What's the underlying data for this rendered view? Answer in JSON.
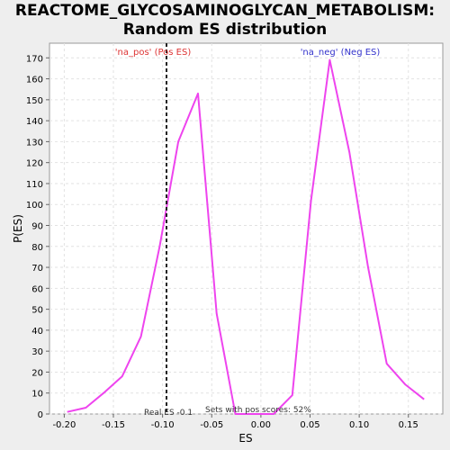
{
  "chart_data": {
    "type": "line",
    "title": "REACTOME_GLYCOSAMINOGLYCAN_METABOLISM:",
    "subtitle": "Random ES distribution",
    "xlabel": "ES",
    "ylabel": "P(ES)",
    "xlim": [
      -0.215,
      0.185
    ],
    "ylim": [
      0,
      177
    ],
    "grid": true,
    "x_ticks": [
      -0.2,
      -0.15,
      -0.1,
      -0.05,
      0.0,
      0.05,
      0.1,
      0.15
    ],
    "x_tick_labels": [
      "-0.20",
      "-0.15",
      "-0.10",
      "-0.05",
      "0.00",
      "0.05",
      "0.10",
      "0.15"
    ],
    "y_ticks": [
      0,
      10,
      20,
      30,
      40,
      50,
      60,
      70,
      80,
      90,
      100,
      110,
      120,
      130,
      140,
      150,
      160,
      170
    ],
    "series": [
      {
        "color": "#ee44ee",
        "x": [
          -0.197,
          -0.178,
          -0.16,
          -0.141,
          -0.122,
          -0.103,
          -0.084,
          -0.064,
          -0.045,
          -0.026,
          -0.007,
          0.013,
          0.032,
          0.051,
          0.07,
          0.09,
          0.109,
          0.128,
          0.147,
          0.166
        ],
        "y": [
          1,
          3,
          10,
          18,
          37,
          80,
          130,
          153,
          48,
          0,
          0,
          0,
          9,
          102,
          169,
          125,
          70,
          24,
          14,
          7
        ]
      }
    ],
    "annotations": {
      "pos_label": "'na_pos' (Pos ES)",
      "neg_label": "'na_neg' (Neg ES)",
      "pos_color": "#dd3333",
      "neg_color": "#3333cc",
      "real_es_label": "Real ES -0.1",
      "real_es_value": -0.096,
      "sets_label": "Sets with pos scores: 52%"
    }
  }
}
